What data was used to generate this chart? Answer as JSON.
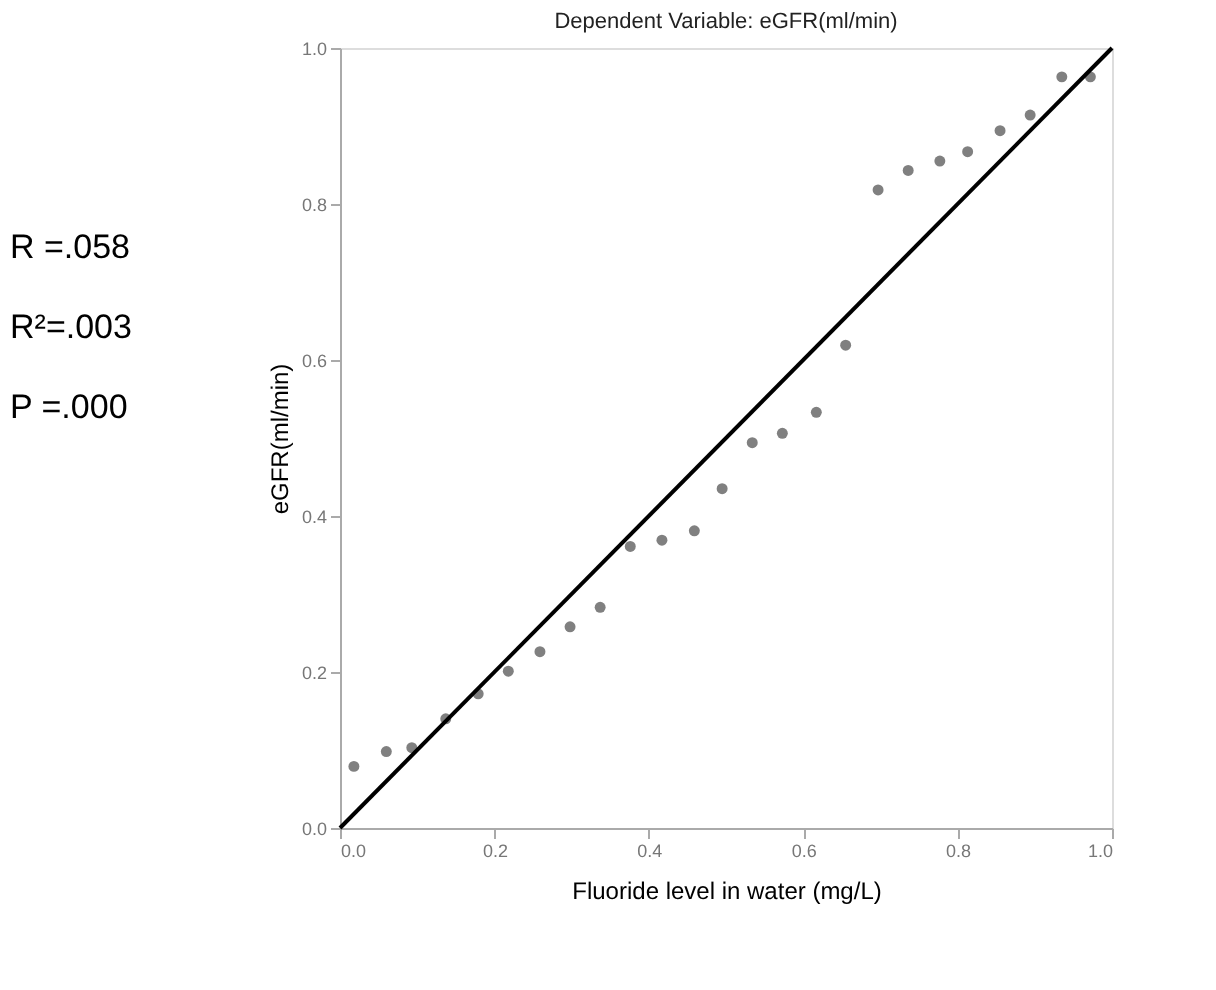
{
  "chart_data": {
    "type": "scatter",
    "title": "Dependent Variable: eGFR(ml/min)",
    "xlabel": "Fluoride level in water (mg/L)",
    "ylabel": "eGFR(ml/min)",
    "annotations": [
      "R =.058",
      "R²=.003",
      "P =.000"
    ],
    "xlim": [
      0,
      1
    ],
    "ylim": [
      0,
      1
    ],
    "xticks": [
      {
        "value": 0,
        "label": "0.0"
      },
      0.2,
      0.4,
      0.6,
      0.8,
      {
        "value": 1,
        "label": "1.0"
      }
    ],
    "yticks": [
      {
        "value": 0,
        "label": "0.0"
      },
      0.2,
      0.4,
      0.6,
      0.8,
      {
        "value": 1,
        "label": "1.0"
      }
    ],
    "grid": false,
    "series": [
      {
        "marker": "circle",
        "color": "#808080",
        "x": [
          0.018,
          0.06,
          0.093,
          0.137,
          0.179,
          0.218,
          0.259,
          0.298,
          0.337,
          0.376,
          0.417,
          0.459,
          0.495,
          0.534,
          0.573,
          0.617,
          0.655,
          0.697,
          0.736,
          0.777,
          0.813,
          0.855,
          0.894,
          0.935,
          0.972
        ],
        "values": [
          0.079,
          0.098,
          0.103,
          0.14,
          0.172,
          0.201,
          0.226,
          0.258,
          0.283,
          0.361,
          0.369,
          0.381,
          0.435,
          0.494,
          0.506,
          0.533,
          0.619,
          0.818,
          0.843,
          0.855,
          0.867,
          0.894,
          0.914,
          0.963,
          0.963
        ]
      },
      {
        "type": "line",
        "marker": "none",
        "color": "#000000",
        "line_style": "solid",
        "x": [
          0,
          1
        ],
        "values": [
          0,
          1
        ]
      }
    ]
  }
}
